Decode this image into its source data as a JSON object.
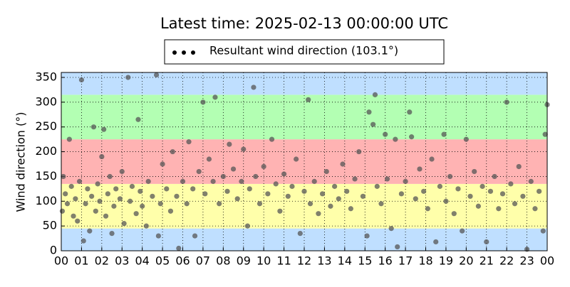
{
  "chart_data": {
    "type": "scatter",
    "title": "Latest time: 2025-02-13 00:00:00 UTC",
    "y_label": "Wind direction (°)",
    "xlim": [
      0,
      24
    ],
    "xticks": [
      {
        "value": 0,
        "label": "00"
      },
      {
        "value": 1,
        "label": "01"
      },
      {
        "value": 2,
        "label": "02"
      },
      {
        "value": 3,
        "label": "03"
      },
      {
        "value": 4,
        "label": "04"
      },
      {
        "value": 5,
        "label": "05"
      },
      {
        "value": 6,
        "label": "06"
      },
      {
        "value": 7,
        "label": "07"
      },
      {
        "value": 8,
        "label": "08"
      },
      {
        "value": 9,
        "label": "09"
      },
      10,
      11,
      12,
      13,
      14,
      15,
      16,
      17,
      18,
      19,
      20,
      21,
      22,
      23,
      {
        "value": 24,
        "label": "00"
      }
    ],
    "ylim": [
      0,
      360
    ],
    "yticks": [
      0,
      50,
      100,
      150,
      200,
      250,
      300,
      350
    ],
    "grid": true,
    "legend": "top",
    "bands": [
      {
        "from": 0,
        "to": 45,
        "color": "#bfdfff"
      },
      {
        "from": 45,
        "to": 135,
        "color": "#ffffaa"
      },
      {
        "from": 135,
        "to": 225,
        "color": "#ffb3b3"
      },
      {
        "from": 225,
        "to": 315,
        "color": "#b3ffb3"
      },
      {
        "from": 315,
        "to": 360,
        "color": "#bfdfff"
      }
    ],
    "x": [
      0.05,
      0.1,
      0.2,
      0.3,
      0.4,
      0.5,
      0.6,
      0.7,
      0.8,
      0.9,
      1.0,
      1.1,
      1.2,
      1.3,
      1.4,
      1.5,
      1.6,
      1.7,
      1.8,
      1.9,
      2.0,
      2.1,
      2.2,
      2.3,
      2.4,
      2.5,
      2.6,
      2.7,
      2.9,
      3.0,
      3.1,
      3.3,
      3.4,
      3.5,
      3.7,
      3.8,
      3.9,
      4.0,
      4.2,
      4.3,
      4.5,
      4.7,
      4.8,
      4.9,
      5.0,
      5.2,
      5.4,
      5.5,
      5.7,
      5.8,
      6.0,
      6.2,
      6.3,
      6.5,
      6.6,
      6.8,
      7.0,
      7.1,
      7.3,
      7.5,
      7.6,
      7.8,
      8.0,
      8.2,
      8.3,
      8.5,
      8.7,
      8.9,
      9.0,
      9.2,
      9.3,
      9.5,
      9.6,
      9.8,
      10.0,
      10.2,
      10.4,
      10.6,
      10.8,
      11.0,
      11.2,
      11.4,
      11.6,
      11.8,
      12.0,
      12.2,
      12.3,
      12.5,
      12.7,
      12.9,
      13.1,
      13.3,
      13.5,
      13.7,
      13.9,
      14.1,
      14.3,
      14.5,
      14.7,
      14.9,
      15.1,
      15.2,
      15.4,
      15.5,
      15.6,
      15.8,
      16.0,
      16.1,
      16.3,
      16.5,
      16.6,
      16.8,
      17.0,
      17.2,
      17.3,
      17.5,
      17.7,
      17.9,
      18.1,
      18.3,
      18.5,
      18.7,
      18.9,
      19.0,
      19.2,
      19.4,
      19.6,
      19.8,
      20.0,
      20.2,
      20.4,
      20.6,
      20.8,
      21.0,
      21.2,
      21.4,
      21.6,
      21.8,
      22.0,
      22.2,
      22.4,
      22.6,
      22.8,
      23.0,
      23.2,
      23.4,
      23.6,
      23.8,
      23.9,
      24.0
    ],
    "series": [
      {
        "name": "Resultant wind direction (103.1°)",
        "color": "#555555",
        "values": [
          80,
          150,
          115,
          95,
          225,
          130,
          70,
          105,
          60,
          140,
          345,
          20,
          95,
          125,
          40,
          110,
          250,
          80,
          135,
          100,
          190,
          245,
          70,
          115,
          150,
          35,
          90,
          125,
          105,
          160,
          55,
          350,
          100,
          130,
          75,
          265,
          120,
          90,
          50,
          140,
          110,
          355,
          30,
          95,
          175,
          125,
          80,
          200,
          110,
          5,
          140,
          95,
          220,
          125,
          30,
          160,
          300,
          115,
          185,
          140,
          310,
          95,
          150,
          120,
          215,
          165,
          105,
          140,
          205,
          50,
          125,
          330,
          150,
          95,
          170,
          115,
          225,
          135,
          80,
          155,
          110,
          130,
          185,
          35,
          120,
          305,
          95,
          140,
          75,
          115,
          160,
          90,
          130,
          105,
          175,
          120,
          85,
          145,
          200,
          110,
          30,
          280,
          255,
          315,
          130,
          95,
          235,
          145,
          45,
          225,
          8,
          115,
          140,
          280,
          230,
          105,
          165,
          120,
          85,
          185,
          18,
          130,
          235,
          100,
          150,
          75,
          125,
          40,
          225,
          110,
          160,
          90,
          130,
          18,
          120,
          150,
          85,
          115,
          300,
          135,
          95,
          170,
          110,
          3,
          140,
          85,
          120,
          40,
          235,
          295
        ]
      }
    ]
  }
}
